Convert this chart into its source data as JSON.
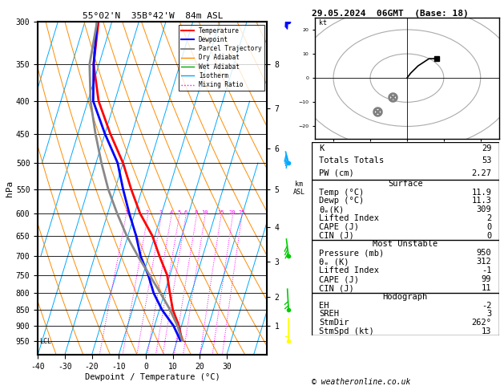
{
  "title_left": "55°02'N  35B°42'W  84m ASL",
  "title_right": "29.05.2024  06GMT  (Base: 18)",
  "xlabel": "Dewpoint / Temperature (°C)",
  "ylabel_left": "hPa",
  "pressure_ticks": [
    300,
    350,
    400,
    450,
    500,
    550,
    600,
    650,
    700,
    750,
    800,
    850,
    900,
    950
  ],
  "temp_ticks": [
    -40,
    -30,
    -20,
    -10,
    0,
    10,
    20,
    30
  ],
  "TMIN": -40,
  "TMAX": 35,
  "PMIN": 300,
  "PMAX": 1000,
  "skew_factor": 0.5,
  "temp_profile": {
    "pressure": [
      950,
      900,
      850,
      800,
      750,
      700,
      650,
      600,
      550,
      500,
      450,
      400,
      350,
      300
    ],
    "temperature": [
      11.9,
      9.0,
      5.0,
      2.0,
      -1.0,
      -6.0,
      -11.0,
      -18.0,
      -24.0,
      -30.0,
      -38.0,
      -46.0,
      -52.0,
      -55.0
    ],
    "color": "#ff0000",
    "linewidth": 2.0,
    "zorder": 5
  },
  "dewpoint_profile": {
    "pressure": [
      950,
      900,
      850,
      800,
      750,
      700,
      650,
      600,
      550,
      500,
      450,
      400,
      350,
      300
    ],
    "temperature": [
      11.3,
      7.0,
      1.0,
      -4.0,
      -8.0,
      -13.0,
      -17.0,
      -22.0,
      -27.0,
      -32.0,
      -40.0,
      -48.0,
      -52.0,
      -55.5
    ],
    "color": "#0000ff",
    "linewidth": 2.0,
    "zorder": 5
  },
  "parcel_profile": {
    "pressure": [
      950,
      900,
      850,
      800,
      750,
      700,
      650,
      600,
      550,
      500,
      450,
      400,
      350,
      300
    ],
    "temperature": [
      11.9,
      8.5,
      4.0,
      -1.5,
      -7.5,
      -14.0,
      -20.5,
      -26.5,
      -32.5,
      -38.0,
      -43.5,
      -49.0,
      -53.5,
      -55.5
    ],
    "color": "#888888",
    "linewidth": 2.0,
    "zorder": 5
  },
  "km_ticks": [
    1,
    2,
    3,
    4,
    5,
    6,
    7,
    8
  ],
  "km_pressures": [
    900,
    810,
    715,
    630,
    550,
    475,
    410,
    350
  ],
  "mixing_ratio_levels": [
    1,
    2,
    3,
    4,
    5,
    6,
    8,
    10,
    15,
    20,
    25
  ],
  "mixing_ratio_color": "#ff00ff",
  "isotherm_color": "#00aaff",
  "dry_adiabat_color": "#ff8c00",
  "wet_adiabat_color": "#00aa00",
  "lcl_pressure": 950,
  "copyright": "© weatheronline.co.uk",
  "wind_barbs": {
    "pressures": [
      950,
      850,
      700,
      500,
      300
    ],
    "speeds_kt": [
      5,
      10,
      15,
      20,
      25
    ],
    "dirs_deg": [
      180,
      200,
      220,
      240,
      260
    ],
    "colors": [
      "#ffff00",
      "#00cc00",
      "#00cc00",
      "#00aaff",
      "#0000ff"
    ]
  },
  "stability_indices": {
    "K": 29,
    "Totals Totals": 53,
    "PW (cm)": "2.27",
    "Surface": {
      "Temp": "11.9",
      "Dewp": "11.3",
      "the_K": 309,
      "Lifted Index": 2,
      "CAPE": 0,
      "CIN": 0
    },
    "Most Unstable": {
      "Pressure_mb": 950,
      "the_K": 312,
      "Lifted Index": -1,
      "CAPE": 99,
      "CIN": 11
    },
    "Hodograph": {
      "EH": -2,
      "SREH": 3,
      "StmDir": "262°",
      "StmSpd_kt": 13
    }
  },
  "legend_entries": [
    {
      "label": "Temperature",
      "color": "#ff0000",
      "lw": 1.5,
      "ls": "-"
    },
    {
      "label": "Dewpoint",
      "color": "#0000ff",
      "lw": 1.5,
      "ls": "-"
    },
    {
      "label": "Parcel Trajectory",
      "color": "#888888",
      "lw": 1.5,
      "ls": "-"
    },
    {
      "label": "Dry Adiabat",
      "color": "#ff8c00",
      "lw": 1.0,
      "ls": "-"
    },
    {
      "label": "Wet Adiabat",
      "color": "#00aa00",
      "lw": 1.0,
      "ls": "-"
    },
    {
      "label": "Isotherm",
      "color": "#00aaff",
      "lw": 1.0,
      "ls": "-"
    },
    {
      "label": "Mixing Ratio",
      "color": "#ff00ff",
      "lw": 1.0,
      "ls": ":"
    }
  ]
}
